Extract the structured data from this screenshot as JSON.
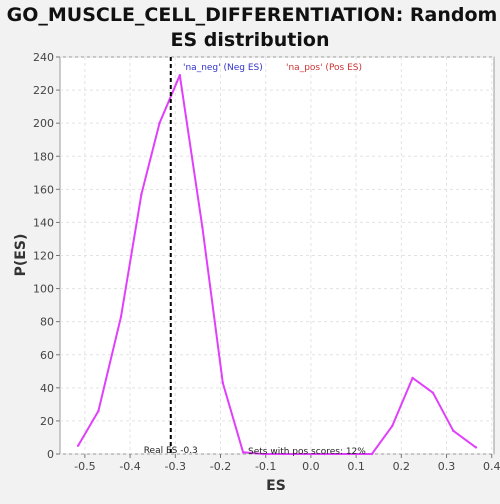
{
  "chart_data": {
    "type": "line",
    "title_lines": [
      "GO_MUSCLE_CELL_DIFFERENTIATION: Random",
      "ES distribution"
    ],
    "xlabel": "ES",
    "ylabel": "P(ES)",
    "xlim": [
      -0.555,
      0.405
    ],
    "ylim": [
      0,
      240
    ],
    "x_ticks": [
      -0.5,
      -0.4,
      -0.3,
      -0.2,
      -0.1,
      0.0,
      0.1,
      0.2,
      0.3,
      0.4
    ],
    "x_tick_labels": [
      "-0.5",
      "-0.4",
      "-0.3",
      "-0.2",
      "-0.1",
      "0.0",
      "0.1",
      "0.2",
      "0.3",
      "0.4"
    ],
    "y_ticks": [
      0,
      20,
      40,
      60,
      80,
      100,
      120,
      140,
      160,
      180,
      200,
      220,
      240
    ],
    "y_tick_labels": [
      "0",
      "20",
      "40",
      "60",
      "80",
      "100",
      "120",
      "140",
      "160",
      "180",
      "200",
      "220",
      "240"
    ],
    "grid": true,
    "legend": [
      {
        "label": "'na_neg' (Neg ES)",
        "color": "#3333cc"
      },
      {
        "label": "'na_pos' (Pos ES)",
        "color": "#cc3333"
      }
    ],
    "series": [
      {
        "color": "#e040fb",
        "x": [
          -0.515,
          -0.47,
          -0.42,
          -0.375,
          -0.335,
          -0.29,
          -0.24,
          -0.195,
          -0.15,
          -0.105,
          -0.06,
          -0.015,
          0.03,
          0.085,
          0.135,
          0.18,
          0.225,
          0.27,
          0.315,
          0.365
        ],
        "y": [
          5,
          26,
          83,
          157,
          200,
          229,
          137,
          43,
          1,
          0,
          0,
          0,
          0,
          0,
          0,
          17,
          46,
          37,
          14,
          4
        ]
      }
    ],
    "real_es": {
      "x": -0.31,
      "label": "Real ES -0.3",
      "color": "#000000"
    },
    "annotation": "Sets with pos scores: 12%"
  }
}
